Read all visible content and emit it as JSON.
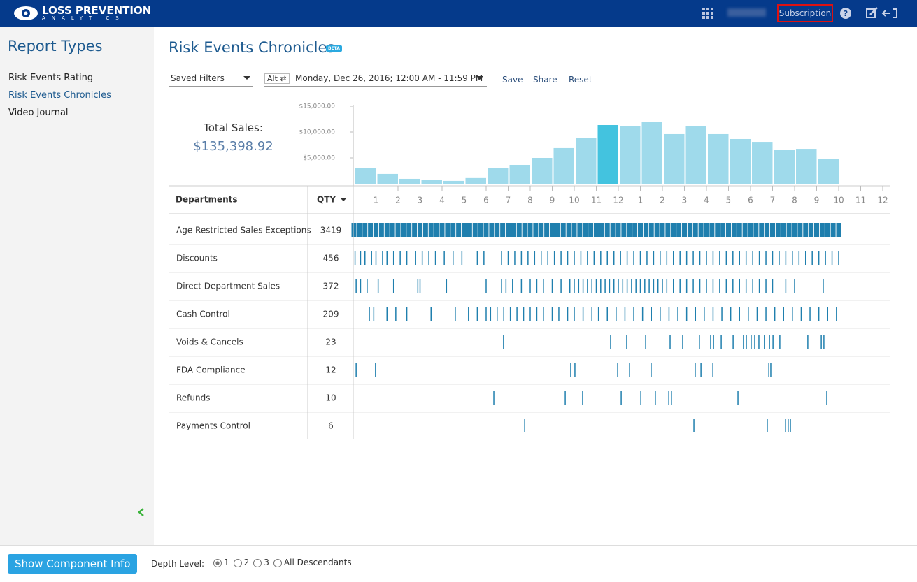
{
  "header": {
    "logo_line1": "LOSS PREVENTION",
    "logo_line2": "ANALYTICS",
    "subscription": "Subscription"
  },
  "sidebar": {
    "title": "Report Types",
    "items": [
      "Risk Events Rating",
      "Risk Events Chronicles",
      "Video Journal"
    ]
  },
  "page": {
    "title": "Risk Events Chronicles",
    "badge": "BETA",
    "saved_filters": "Saved Filters",
    "alt": "Alt",
    "date_range": "Monday, Dec 26, 2016; 12:00 AM - 11:59 PM",
    "actions": [
      "Save",
      "Share",
      "Reset"
    ],
    "total_label": "Total Sales:",
    "total_value": "$135,398.92"
  },
  "chart_data": {
    "type": "bar",
    "x": [
      0,
      1,
      2,
      3,
      4,
      5,
      6,
      7,
      8,
      9,
      10,
      11,
      12,
      13,
      14,
      15,
      16,
      17,
      18,
      19,
      20,
      21
    ],
    "values": [
      3000,
      1900,
      950,
      800,
      550,
      1100,
      3100,
      3650,
      5000,
      6900,
      8800,
      11350,
      11100,
      11900,
      9600,
      11100,
      9600,
      8650,
      8100,
      6500,
      6750,
      4750
    ],
    "color": "#9fdaeb",
    "highlight": {
      "index": 11,
      "color": "#43c3df"
    },
    "ylim": [
      0,
      15000
    ],
    "yticks": [
      {
        "value": 5000,
        "label": "$5,000.00"
      },
      {
        "value": 10000,
        "label": "$10,000.00"
      },
      {
        "value": 15000,
        "label": "$15,000.00"
      }
    ],
    "xlim": [
      0,
      24
    ],
    "xticks": [
      1,
      2,
      3,
      4,
      5,
      6,
      7,
      8,
      9,
      10,
      11,
      12,
      {
        "value": 13,
        "label": "1"
      },
      {
        "value": 14,
        "label": "2"
      },
      {
        "value": 15,
        "label": "3"
      },
      {
        "value": 16,
        "label": "4"
      },
      {
        "value": 17,
        "label": "5"
      },
      {
        "value": 18,
        "label": "6"
      },
      {
        "value": 19,
        "label": "7"
      },
      {
        "value": 20,
        "label": "8"
      },
      {
        "value": 21,
        "label": "9"
      },
      {
        "value": 22,
        "label": "10"
      },
      {
        "value": 23,
        "label": "11"
      },
      {
        "value": 24,
        "label": "12"
      }
    ]
  },
  "table": {
    "headers": [
      "Departments",
      "QTY"
    ],
    "event_color": "#1f7fae",
    "rows": [
      {
        "name": "Age Restricted Sales Exceptions",
        "qty": 3419,
        "events": [
          0,
          0.25,
          0.5,
          0.75,
          1,
          1.25,
          1.5,
          1.75,
          2,
          2.25,
          2.5,
          2.75,
          3,
          3.25,
          3.5,
          3.75,
          4,
          4.25,
          4.5,
          4.75,
          5,
          5.25,
          5.5,
          5.75,
          6,
          6.25,
          6.5,
          6.75,
          7,
          7.25,
          7.5,
          7.75,
          8,
          8.25,
          8.5,
          8.75,
          9,
          9.25,
          9.5,
          9.75,
          10,
          10.25,
          10.5,
          10.75,
          11,
          11.25,
          11.5,
          11.75,
          12,
          12.25,
          12.5,
          12.75,
          13,
          13.25,
          13.5,
          13.75,
          14,
          14.25,
          14.5,
          14.75,
          15,
          15.25,
          15.5,
          15.75,
          16,
          16.25,
          16.5,
          16.75,
          17,
          17.25,
          17.5,
          17.75,
          18,
          18.25,
          18.5,
          18.75,
          19,
          19.25,
          19.5,
          19.75,
          20,
          20.25,
          20.5,
          20.75,
          21,
          21.25,
          21.5,
          21.75,
          22
        ]
      },
      {
        "name": "Discounts",
        "qty": 456,
        "events": [
          0.05,
          0.3,
          0.5,
          0.8,
          1,
          1.3,
          1.5,
          1.8,
          2.1,
          2.4,
          2.8,
          3.1,
          3.4,
          3.7,
          4.1,
          4.5,
          4.9,
          5.6,
          5.9,
          6.7,
          7,
          7.3,
          7.6,
          7.9,
          8.2,
          8.5,
          8.8,
          9.1,
          9.4,
          9.7,
          10,
          10.3,
          10.6,
          10.9,
          11.2,
          11.5,
          11.8,
          12.1,
          12.4,
          12.7,
          13,
          13.3,
          13.6,
          13.9,
          14.2,
          14.5,
          14.8,
          15.1,
          15.4,
          15.7,
          16,
          16.3,
          16.6,
          16.9,
          17.2,
          17.5,
          17.8,
          18.1,
          18.4,
          18.7,
          19,
          19.3,
          19.6,
          19.9,
          20.2,
          20.5,
          20.8,
          21.1,
          21.4,
          21.7,
          22
        ]
      },
      {
        "name": "Direct Department Sales",
        "qty": 372,
        "events": [
          0.1,
          0.3,
          0.6,
          1.1,
          1.8,
          2.9,
          3,
          4.2,
          6,
          6.7,
          6.9,
          7.2,
          7.6,
          8,
          8.3,
          8.6,
          9,
          9.4,
          9.8,
          10,
          10.2,
          10.4,
          10.6,
          10.8,
          11,
          11.2,
          11.4,
          11.6,
          11.8,
          12,
          12.2,
          12.4,
          12.6,
          12.8,
          13,
          13.2,
          13.4,
          13.6,
          13.8,
          14,
          14.2,
          14.5,
          14.8,
          15.1,
          15.4,
          15.7,
          16,
          16.3,
          16.6,
          16.9,
          17.2,
          17.5,
          17.8,
          18.1,
          18.4,
          18.7,
          19,
          19.6,
          20,
          21.3
        ]
      },
      {
        "name": "Cash Control",
        "qty": 209,
        "events": [
          0.7,
          0.9,
          1.5,
          1.9,
          2.4,
          3.5,
          4.6,
          5.2,
          5.6,
          6,
          6.2,
          6.5,
          6.8,
          7.1,
          7.4,
          7.7,
          8,
          8.3,
          8.6,
          9,
          9.3,
          9.7,
          10,
          10.4,
          10.8,
          11.1,
          11.5,
          11.9,
          12.3,
          12.7,
          13.1,
          13.5,
          13.9,
          14.3,
          14.7,
          15.1,
          15.5,
          15.9,
          16.3,
          16.7,
          17.1,
          17.5,
          17.9,
          18.3,
          18.7,
          19.1,
          19.5,
          19.9,
          20.3,
          20.7,
          21.1,
          21.5,
          21.9
        ]
      },
      {
        "name": "Voids & Cancels",
        "qty": 23,
        "events": [
          6.79,
          11.65,
          12.38,
          13.24,
          14.35,
          14.92,
          15.68,
          16.19,
          16.32,
          16.67,
          17.21,
          17.68,
          17.81,
          18.03,
          18.19,
          18.38,
          18.63,
          18.86,
          19.02,
          19.33,
          20.6,
          21.21,
          21.33
        ]
      },
      {
        "name": "FDA Compliance",
        "qty": 12,
        "events": [
          0.1,
          0.98,
          9.84,
          10.03,
          11.97,
          12.51,
          13.49,
          15.49,
          15.75,
          16.29,
          18.83,
          18.92
        ]
      },
      {
        "name": "Refunds",
        "qty": 10,
        "events": [
          6.35,
          9.59,
          10.38,
          12.13,
          13.02,
          13.68,
          14.29,
          14.41,
          17.43,
          21.46
        ]
      },
      {
        "name": "Payments Control",
        "qty": 6,
        "events": [
          7.75,
          15.43,
          18.76,
          19.59,
          19.71,
          19.81
        ]
      }
    ]
  },
  "footer": {
    "button": "Show Component Info",
    "depth_label": "Depth Level:",
    "depth_options": [
      "1",
      "2",
      "3",
      "All Descendants"
    ]
  }
}
